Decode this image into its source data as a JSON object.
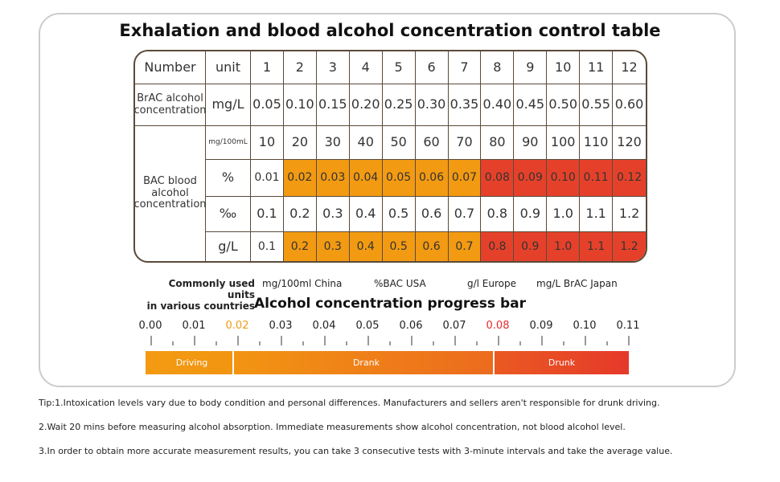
{
  "title": "Exhalation and blood alcohol concentration control table",
  "table": {
    "header": {
      "number": "Number",
      "unit": "unit",
      "cols": [
        "1",
        "2",
        "3",
        "4",
        "5",
        "6",
        "7",
        "8",
        "9",
        "10",
        "11",
        "12"
      ]
    },
    "brac": {
      "label": "BrAC alcohol concentration",
      "unit": "mg/L",
      "values": [
        "0.05",
        "0.10",
        "0.15",
        "0.20",
        "0.25",
        "0.30",
        "0.35",
        "0.40",
        "0.45",
        "0.50",
        "0.55",
        "0.60"
      ]
    },
    "bac_label": "BAC blood alcohol concentration",
    "bac_rows": [
      {
        "unit": "mg/100mL",
        "values": [
          "10",
          "20",
          "30",
          "40",
          "50",
          "60",
          "70",
          "80",
          "90",
          "100",
          "110",
          "120"
        ],
        "highlight": false
      },
      {
        "unit": "%",
        "values": [
          "0.01",
          "0.02",
          "0.03",
          "0.04",
          "0.05",
          "0.06",
          "0.07",
          "0.08",
          "0.09",
          "0.10",
          "0.11",
          "0.12"
        ],
        "highlight": true
      },
      {
        "unit": "‰",
        "values": [
          "0.1",
          "0.2",
          "0.3",
          "0.4",
          "0.5",
          "0.6",
          "0.7",
          "0.8",
          "0.9",
          "1.0",
          "1.1",
          "1.2"
        ],
        "highlight": false
      },
      {
        "unit": "g/L",
        "values": [
          "0.1",
          "0.2",
          "0.3",
          "0.4",
          "0.5",
          "0.6",
          "0.7",
          "0.8",
          "0.9",
          "1.0",
          "1.1",
          "1.2"
        ],
        "highlight": true
      }
    ],
    "colors": {
      "driving": "#f29a12",
      "drunk": "#e5412a"
    }
  },
  "units": {
    "label_line1": "Commonly used units",
    "label_line2": "in various countries",
    "china": "mg/100ml China",
    "usa": "%BAC  USA",
    "europe": "g/l Europe",
    "japan": "mg/L BrAC  Japan"
  },
  "progress": {
    "title": "Alcohol concentration progress bar",
    "ticks": [
      "0.00",
      "0.01",
      "0.02",
      "0.03",
      "0.04",
      "0.05",
      "0.06",
      "0.07",
      "0.08",
      "0.09",
      "0.10",
      "0.11"
    ],
    "segments": [
      {
        "label": "Driving",
        "from": 0,
        "to": 0.02
      },
      {
        "label": "Drank",
        "from": 0.02,
        "to": 0.08
      },
      {
        "label": "Drunk",
        "from": 0.08,
        "to": 0.11
      }
    ],
    "tick_colors": {
      "0.02": "#f29a12",
      "0.08": "#e52a2a"
    }
  },
  "tips": [
    "Tip:1.Intoxication levels vary due to body condition and personal differences. Manufacturers and sellers aren't responsible for drunk driving.",
    "2.Wait 20 mins before measuring alcohol absorption. Immediate measurements show alcohol concentration, not blood alcohol level.",
    "3.In order to obtain more accurate measurement results, you can take 3 consecutive tests with 3-minute intervals and take the average value."
  ]
}
